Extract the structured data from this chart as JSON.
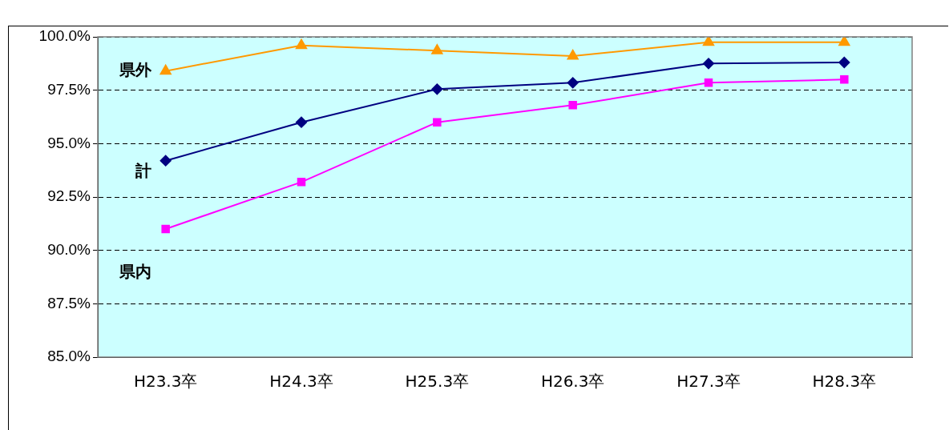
{
  "chart_data": {
    "type": "line",
    "categories": [
      "H23.3卒",
      "H24.3卒",
      "H25.3卒",
      "H26.3卒",
      "H27.3卒",
      "H28.3卒"
    ],
    "series": [
      {
        "name": "県外",
        "color": "#ff9900",
        "marker": "triangle",
        "values": [
          98.4,
          99.6,
          99.35,
          99.1,
          99.75,
          99.75
        ]
      },
      {
        "name": "計",
        "color": "#000080",
        "marker": "diamond",
        "values": [
          94.2,
          96.0,
          97.55,
          97.85,
          98.75,
          98.8
        ]
      },
      {
        "name": "県内",
        "color": "#ff00ff",
        "marker": "square",
        "values": [
          91.0,
          93.2,
          96.0,
          96.8,
          97.85,
          98.0
        ]
      }
    ],
    "ylim": [
      85,
      100
    ],
    "yticks": [
      {
        "value": 85,
        "label": "85.0%"
      },
      {
        "value": 87.5,
        "label": "87.5%"
      },
      {
        "value": 90,
        "label": "90.0%"
      },
      {
        "value": 92.5,
        "label": "92.5%"
      },
      {
        "value": 95,
        "label": "95.0%"
      },
      {
        "value": 97.5,
        "label": "97.5%"
      },
      {
        "value": 100,
        "label": "100.0%"
      }
    ],
    "grid": "y",
    "legend": false,
    "line_style": "solid"
  }
}
